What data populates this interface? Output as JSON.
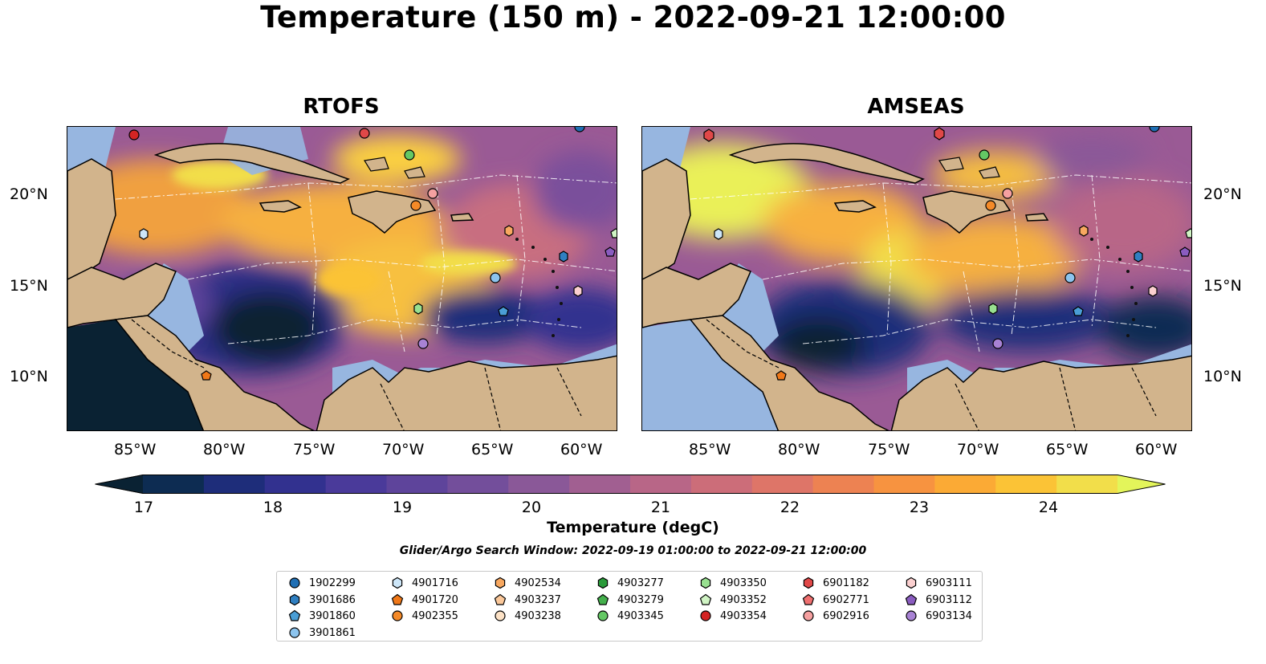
{
  "title": "Temperature (150 m) - 2022-09-21 12:00:00",
  "panels": [
    {
      "title": "RTOFS"
    },
    {
      "title": "AMSEAS"
    }
  ],
  "lon_ticks": [
    "85°W",
    "80°W",
    "75°W",
    "70°W",
    "65°W",
    "60°W"
  ],
  "lat_ticks": [
    "20°N",
    "15°N",
    "10°N"
  ],
  "colorbar": {
    "label": "Temperature (degC)",
    "ticks": [
      "17",
      "18",
      "19",
      "20",
      "21",
      "22",
      "23",
      "24"
    ],
    "min": 16.75,
    "max": 24.5,
    "step": 0.5,
    "colors": [
      "#0a2233",
      "#0d2c52",
      "#1e2d7a",
      "#32318f",
      "#4a3a9a",
      "#5e449b",
      "#734e9b",
      "#8a5898",
      "#a15f91",
      "#b86687",
      "#cc6d79",
      "#de7568",
      "#ed8252",
      "#f79340",
      "#fbaa35",
      "#fbc336",
      "#f2de4a",
      "#e3f55a"
    ]
  },
  "search_window": "Glider/Argo Search Window: 2022-09-19 01:00:00 to 2022-09-21 12:00:00",
  "legend": [
    {
      "id": "1902299",
      "marker": "circle",
      "color": "#1f6fb4"
    },
    {
      "id": "3901686",
      "marker": "hexagon",
      "color": "#2f7fc1"
    },
    {
      "id": "3901860",
      "marker": "pentagon",
      "color": "#4a9ed6"
    },
    {
      "id": "3901861",
      "marker": "circle",
      "color": "#8cc4ee"
    },
    {
      "id": "4901716",
      "marker": "hexagon",
      "color": "#cde6f8"
    },
    {
      "id": "4901720",
      "marker": "pentagon",
      "color": "#f07818"
    },
    {
      "id": "4902355",
      "marker": "circle",
      "color": "#f58a28"
    },
    {
      "id": "4902534",
      "marker": "hexagon",
      "color": "#f8a860"
    },
    {
      "id": "4903237",
      "marker": "pentagon",
      "color": "#fbc89a"
    },
    {
      "id": "4903238",
      "marker": "circle",
      "color": "#fde2c6"
    },
    {
      "id": "4903277",
      "marker": "hexagon",
      "color": "#2a9a3a"
    },
    {
      "id": "4903279",
      "marker": "pentagon",
      "color": "#44b04c"
    },
    {
      "id": "4903345",
      "marker": "circle",
      "color": "#64c864"
    },
    {
      "id": "4903350",
      "marker": "hexagon",
      "color": "#98e090"
    },
    {
      "id": "4903352",
      "marker": "pentagon",
      "color": "#d0f4c4"
    },
    {
      "id": "4903354",
      "marker": "circle",
      "color": "#d42424"
    },
    {
      "id": "6901182",
      "marker": "hexagon",
      "color": "#e04848"
    },
    {
      "id": "6902771",
      "marker": "pentagon",
      "color": "#f07070"
    },
    {
      "id": "6902916",
      "marker": "circle",
      "color": "#f5a0a0"
    },
    {
      "id": "6903111",
      "marker": "hexagon",
      "color": "#fbd0d0"
    },
    {
      "id": "6903112",
      "marker": "pentagon",
      "color": "#8a5cc0"
    },
    {
      "id": "6903134",
      "marker": "circle",
      "color": "#a882d4"
    }
  ],
  "colors": {
    "land": "#d2b48c",
    "shallow_water": "#97b6e0",
    "grid_line": "#ffffff",
    "coast": "#000000"
  }
}
